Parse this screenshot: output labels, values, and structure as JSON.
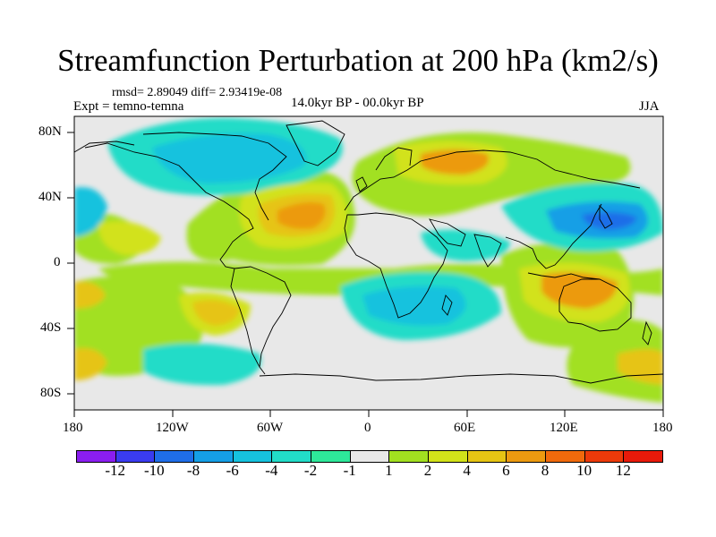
{
  "title": "Streamfunction Perturbation at 200 hPa (km2/s)",
  "stats": "rmsd= 2.89049 diff= 2.93419e-08",
  "experiment": "Expt = temno-temna",
  "period": "14.0kyr BP - 00.0kyr BP",
  "season": "JJA",
  "x_ticks": [
    "180",
    "120W",
    "60W",
    "0",
    "60E",
    "120E",
    "180"
  ],
  "y_ticks": [
    "80N",
    "40N",
    "0",
    "40S",
    "80S"
  ],
  "legend": {
    "labels": [
      "-12",
      "-10",
      "-8",
      "-6",
      "-4",
      "-2",
      "-1",
      "1",
      "2",
      "4",
      "6",
      "8",
      "10",
      "12"
    ],
    "colors": [
      "#8a1ef0",
      "#3a3cf0",
      "#1f6ee8",
      "#159fe6",
      "#16c2de",
      "#22dcc8",
      "#2ee89a",
      "#e8e8e8",
      "#a2e020",
      "#d2e21a",
      "#e6c414",
      "#ec9a10",
      "#f06a0c",
      "#ec3a0a",
      "#e81a0a"
    ]
  },
  "chart_data": {
    "type": "map",
    "variable": "Streamfunction Perturbation at 200 hPa",
    "units": "km2/s",
    "lon_range": [
      -180,
      180
    ],
    "lat_range": [
      -90,
      90
    ],
    "contour_levels": [
      -12,
      -10,
      -8,
      -6,
      -4,
      -2,
      -1,
      1,
      2,
      4,
      6,
      8,
      10,
      12
    ],
    "features": [
      {
        "region": "North America / North Pacific high latitudes",
        "sign": "negative",
        "approx_min": -4
      },
      {
        "region": "Subtropical North Atlantic",
        "sign": "positive",
        "approx_max": 8
      },
      {
        "region": "Eurasia / Russia",
        "sign": "positive",
        "approx_max": 6
      },
      {
        "region": "Western North Pacific",
        "sign": "negative",
        "approx_min": -8
      },
      {
        "region": "Australia / South Indian Ocean",
        "sign": "positive",
        "approx_max": 6
      },
      {
        "region": "South Atlantic / Southern Africa",
        "sign": "negative",
        "approx_min": -6
      },
      {
        "region": "Southeast Pacific",
        "sign": "positive",
        "approx_max": 6
      },
      {
        "region": "Southern Ocean near dateline",
        "sign": "positive",
        "approx_max": 6
      }
    ]
  }
}
